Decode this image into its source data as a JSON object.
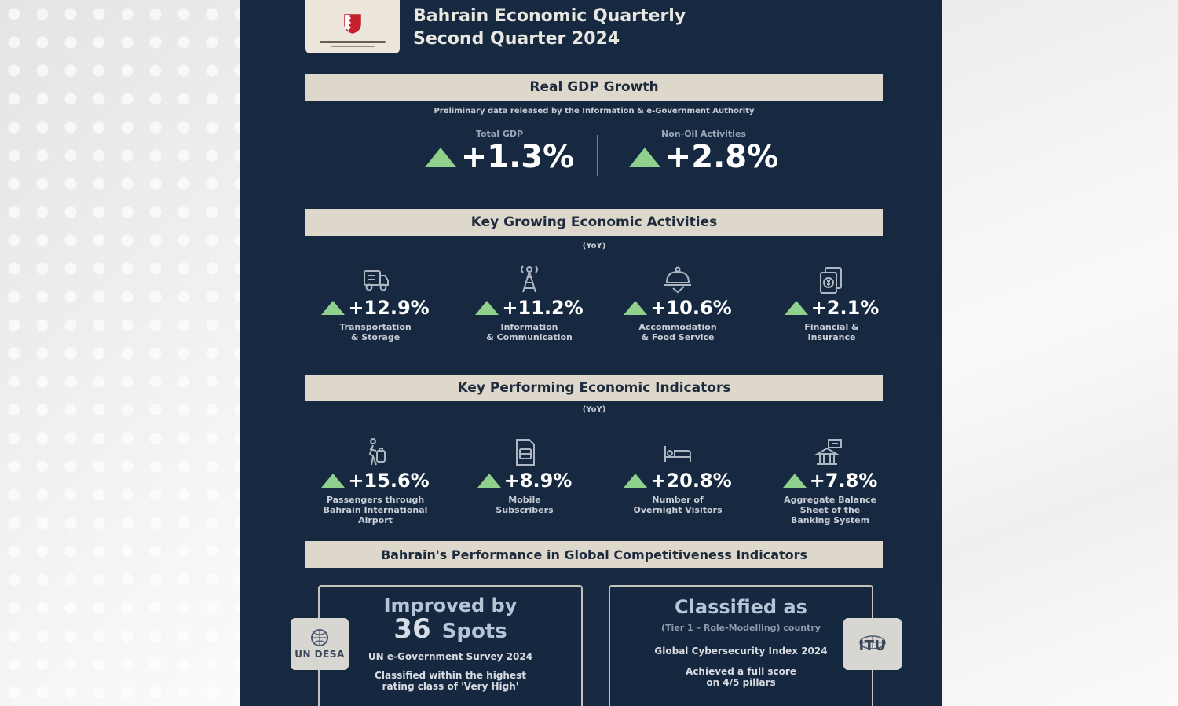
{
  "header": {
    "title_line1": "Bahrain Economic Quarterly",
    "title_line2": "Second Quarter 2024"
  },
  "gdp": {
    "section_title": "Real GDP Growth",
    "note": "Preliminary data released by the Information & e-Government Authority",
    "total": {
      "label": "Total GDP",
      "value": "+1.3%"
    },
    "non_oil": {
      "label": "Non-Oil Activities",
      "value": "+2.8%"
    }
  },
  "activities": {
    "section_title": "Key Growing Economic Activities",
    "period": "(YoY)",
    "items": [
      {
        "icon": "truck-icon",
        "value": "+12.9%",
        "label_line1": "Transportation",
        "label_line2": "& Storage",
        "label_line3": ""
      },
      {
        "icon": "antenna-tower-icon",
        "value": "+11.2%",
        "label_line1": "Information",
        "label_line2": "& Communication",
        "label_line3": ""
      },
      {
        "icon": "food-cloche-icon",
        "value": "+10.6%",
        "label_line1": "Accommodation",
        "label_line2": "& Food Service",
        "label_line3": ""
      },
      {
        "icon": "finance-documents-icon",
        "value": "+2.1%",
        "label_line1": "Financial &",
        "label_line2": "Insurance",
        "label_line3": ""
      }
    ]
  },
  "indicators": {
    "section_title": "Key Performing Economic Indicators",
    "period": "(YoY)",
    "items": [
      {
        "icon": "traveler-icon",
        "value": "+15.6%",
        "label_line1": "Passengers through",
        "label_line2": "Bahrain International",
        "label_line3": "Airport"
      },
      {
        "icon": "mobile-sim-icon",
        "value": "+8.9%",
        "label_line1": "Mobile",
        "label_line2": "Subscribers",
        "label_line3": ""
      },
      {
        "icon": "bed-icon",
        "value": "+20.8%",
        "label_line1": "Number of",
        "label_line2": "Overnight Visitors",
        "label_line3": ""
      },
      {
        "icon": "bank-building-icon",
        "value": "+7.8%",
        "label_line1": "Aggregate Balance",
        "label_line2": "Sheet of the",
        "label_line3": "Banking System"
      }
    ]
  },
  "competitiveness": {
    "section_title": "Bahrain's Performance in Global Competitiveness Indicators",
    "left_card": {
      "heading": "Improved by",
      "number": "36",
      "unit": "Spots",
      "survey": "UN e-Government Survey 2024",
      "note_line1": "Classified within the highest",
      "note_line2": "rating class of 'Very High'",
      "badge": "UN DESA"
    },
    "right_card": {
      "heading": "Classified as",
      "tier": "(Tier 1 – Role-Modelling) country",
      "index": "Global Cybersecurity Index 2024",
      "note_line1": "Achieved a full score",
      "note_line2": "on 4/5 pillars",
      "badge": "ITU"
    }
  },
  "colors": {
    "poster_bg": "#172940",
    "band_bg": "#ddd7cc",
    "up_arrow": "#8fd08c"
  }
}
